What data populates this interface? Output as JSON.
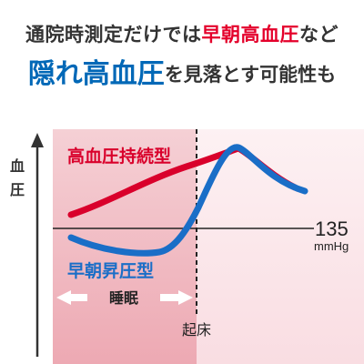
{
  "headline": {
    "line1_prefix": "通院時測定だけでは",
    "line1_accent": "早朝高血圧",
    "line1_suffix": "など",
    "line2_accent": "隠れ高血圧",
    "line2_suffix": "を見落とす可能性も"
  },
  "chart": {
    "y_axis_label_chars": [
      "血",
      "圧"
    ],
    "threshold_value": "135",
    "threshold_unit": "mmHg",
    "series": [
      {
        "name": "高血圧持続型",
        "color": "#d9002b"
      },
      {
        "name": "早朝昇圧型",
        "color": "#1a6ec7"
      }
    ],
    "sleep_label": "睡眠",
    "wake_label": "起床",
    "colors": {
      "sleep_zone": "#f2c3c9",
      "day_zone": "#fbe9ec",
      "text_dark": "#333333"
    }
  }
}
